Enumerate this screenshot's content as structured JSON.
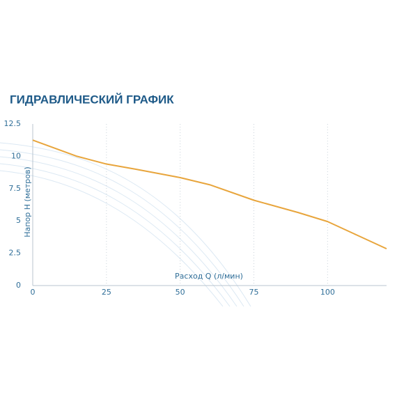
{
  "chart_data": {
    "type": "line",
    "title": "ГИДРАВЛИЧЕСКИЙ ГРАФИК",
    "x_label": "Расход Q (л/мин)",
    "y_label": "Напор H (метров)",
    "x": [
      0,
      15,
      25,
      35,
      50,
      60,
      75,
      90,
      100,
      110,
      120
    ],
    "series": [
      {
        "name": "H",
        "color": "#e8a53c",
        "values": [
          11.25,
          10,
          9.4,
          9,
          8.35,
          7.8,
          6.6,
          5.65,
          4.95,
          3.9,
          2.85
        ]
      }
    ],
    "xlim": [
      0,
      120
    ],
    "xticks": [
      0,
      25,
      50,
      75,
      100
    ],
    "ylim": [
      0,
      12.5
    ],
    "yticks": [
      0,
      2.5,
      5,
      7.5,
      10,
      12.5
    ],
    "grid": true
  }
}
